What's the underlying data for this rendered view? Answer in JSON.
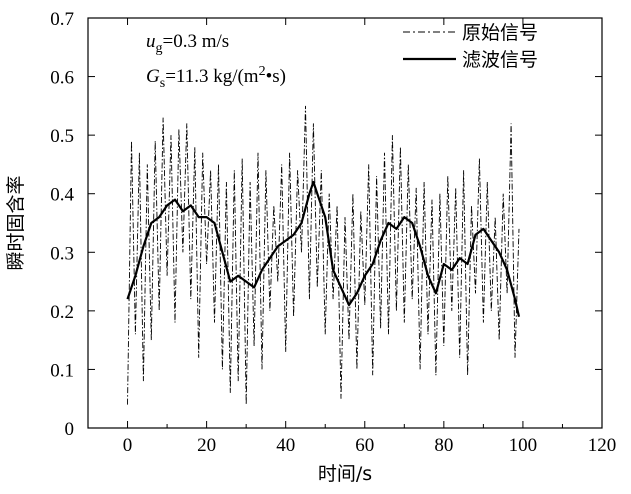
{
  "chart_data": {
    "type": "line",
    "xlabel": "时间/s",
    "ylabel": "瞬时固含率",
    "xlim": [
      -10,
      120
    ],
    "ylim": [
      0,
      0.7
    ],
    "x_ticks": [
      "0",
      "20",
      "40",
      "60",
      "80",
      "100",
      "120"
    ],
    "y_ticks": [
      "0",
      "0.1",
      "0.2",
      "0.3",
      "0.4",
      "0.5",
      "0.6",
      "0.7"
    ],
    "annotations": [
      {
        "var": "u",
        "sub": "g",
        "rest": "=0.3 m/s"
      },
      {
        "var": "G",
        "sub": "s",
        "rest": "=11.3 kg/(m",
        "sup": "2",
        "tail": "•s)"
      }
    ],
    "legend": {
      "position": "top-right"
    },
    "series": [
      {
        "name": "原始信号",
        "style": "dash-dot",
        "x": [
          0,
          1,
          2,
          3,
          4,
          5,
          6,
          7,
          8,
          9,
          10,
          11,
          12,
          13,
          14,
          15,
          16,
          17,
          18,
          19,
          20,
          21,
          22,
          23,
          24,
          25,
          26,
          27,
          28,
          29,
          30,
          31,
          32,
          33,
          34,
          35,
          36,
          37,
          38,
          39,
          40,
          41,
          42,
          43,
          44,
          45,
          46,
          47,
          48,
          49,
          50,
          51,
          52,
          53,
          54,
          55,
          56,
          57,
          58,
          59,
          60,
          61,
          62,
          63,
          64,
          65,
          66,
          67,
          68,
          69,
          70,
          71,
          72,
          73,
          74,
          75,
          76,
          77,
          78,
          79,
          80,
          81,
          82,
          83,
          84,
          85,
          86,
          87,
          88,
          89,
          90,
          91,
          92,
          93,
          94,
          95,
          96,
          97,
          98,
          99
        ],
        "values": [
          0.04,
          0.49,
          0.16,
          0.47,
          0.08,
          0.45,
          0.15,
          0.49,
          0.2,
          0.53,
          0.26,
          0.5,
          0.18,
          0.51,
          0.3,
          0.52,
          0.22,
          0.48,
          0.12,
          0.47,
          0.28,
          0.44,
          0.18,
          0.45,
          0.1,
          0.42,
          0.06,
          0.44,
          0.08,
          0.46,
          0.04,
          0.42,
          0.14,
          0.47,
          0.1,
          0.44,
          0.2,
          0.38,
          0.25,
          0.45,
          0.13,
          0.47,
          0.19,
          0.44,
          0.3,
          0.55,
          0.22,
          0.52,
          0.24,
          0.44,
          0.16,
          0.4,
          0.22,
          0.38,
          0.05,
          0.36,
          0.15,
          0.4,
          0.1,
          0.37,
          0.21,
          0.45,
          0.09,
          0.43,
          0.17,
          0.47,
          0.16,
          0.5,
          0.2,
          0.48,
          0.18,
          0.45,
          0.22,
          0.41,
          0.1,
          0.42,
          0.16,
          0.39,
          0.09,
          0.4,
          0.14,
          0.43,
          0.2,
          0.41,
          0.12,
          0.44,
          0.09,
          0.38,
          0.23,
          0.46,
          0.18,
          0.42,
          0.2,
          0.36,
          0.15,
          0.4,
          0.23,
          0.52,
          0.12,
          0.34
        ]
      },
      {
        "name": "滤波信号",
        "style": "solid",
        "x": [
          0,
          2,
          4,
          6,
          8,
          10,
          12,
          14,
          16,
          18,
          20,
          22,
          24,
          26,
          28,
          30,
          32,
          34,
          36,
          38,
          40,
          42,
          44,
          46,
          47,
          48,
          50,
          52,
          54,
          56,
          58,
          60,
          62,
          64,
          66,
          68,
          70,
          72,
          74,
          76,
          78,
          80,
          82,
          84,
          86,
          88,
          90,
          92,
          94,
          96,
          98,
          99
        ],
        "values": [
          0.22,
          0.26,
          0.31,
          0.35,
          0.36,
          0.38,
          0.39,
          0.37,
          0.38,
          0.36,
          0.36,
          0.35,
          0.3,
          0.25,
          0.26,
          0.25,
          0.24,
          0.27,
          0.29,
          0.31,
          0.32,
          0.33,
          0.35,
          0.4,
          0.42,
          0.4,
          0.36,
          0.27,
          0.24,
          0.21,
          0.23,
          0.26,
          0.28,
          0.32,
          0.35,
          0.34,
          0.36,
          0.35,
          0.31,
          0.26,
          0.23,
          0.28,
          0.27,
          0.29,
          0.28,
          0.33,
          0.34,
          0.32,
          0.3,
          0.27,
          0.22,
          0.19
        ]
      }
    ]
  }
}
